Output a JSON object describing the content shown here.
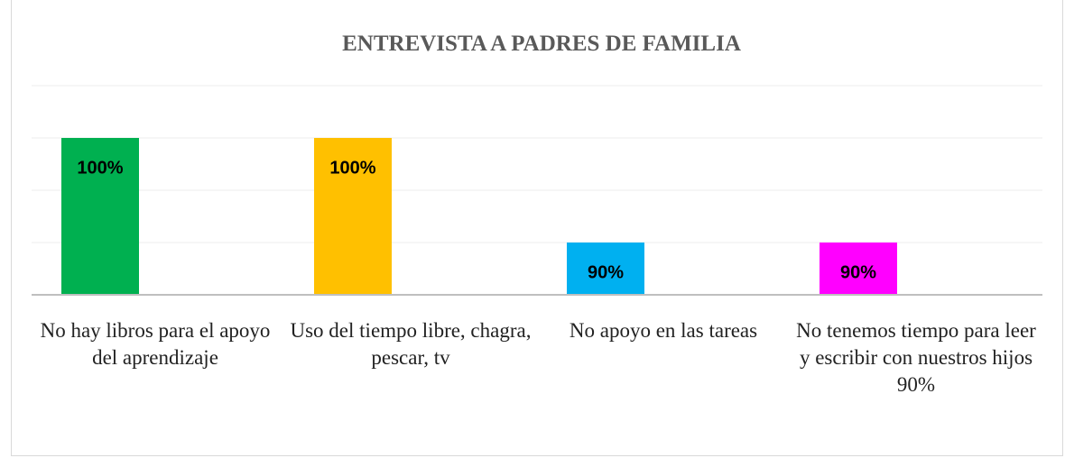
{
  "chart_data": {
    "type": "bar",
    "title": "ENTREVISTA A PADRES DE FAMILIA",
    "categories": [
      "No hay libros para el apoyo del aprendizaje",
      "Uso del tiempo libre, chagra, pescar, tv",
      "No apoyo en las tareas",
      "No tenemos tiempo para leer y escribir con nuestros hijos 90%"
    ],
    "values": [
      100,
      100,
      90,
      90
    ],
    "value_labels": [
      "100%",
      "100%",
      "90%",
      "90%"
    ],
    "colors": [
      "#00b050",
      "#ffc000",
      "#00b0f0",
      "#ff00ff"
    ],
    "ylim": [
      85,
      105
    ],
    "yticks": [
      90,
      95,
      100,
      105
    ],
    "grid": true
  }
}
